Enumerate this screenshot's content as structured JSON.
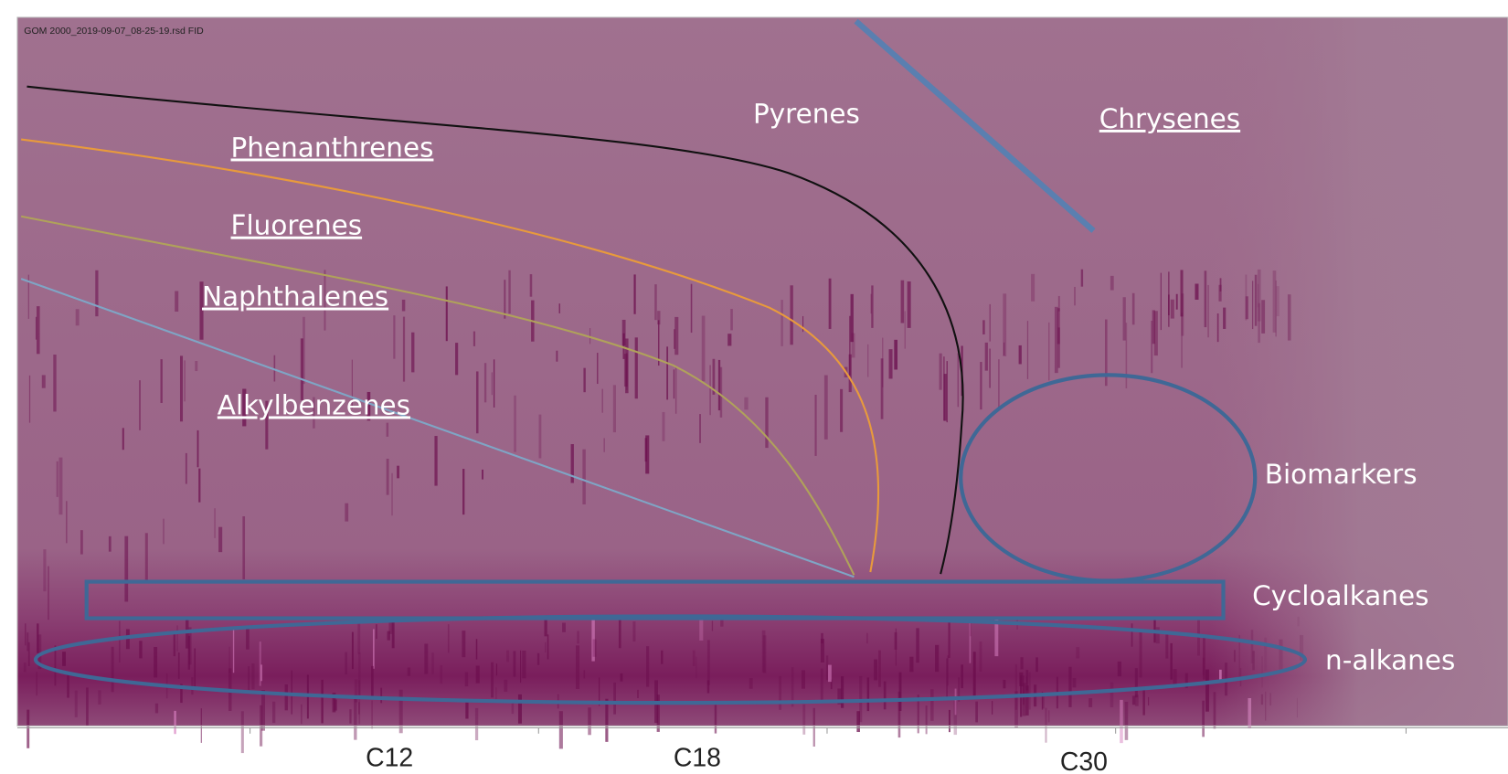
{
  "file_label": "GOM 2000_2019-09-07_08-25-19.rsd FID",
  "labels": {
    "pyrenes": "Pyrenes",
    "chrysenes": "Chrysenes",
    "phenanthrenes": "Phenanthrenes",
    "fluorenes": "Fluorenes",
    "naphthalenes": "Naphthalenes",
    "alkylbenzenes": "Alkylbenzenes",
    "biomarkers": "Biomarkers",
    "cycloalkanes": "Cycloalkanes",
    "n_alkanes": "n-alkanes"
  },
  "x_axis": {
    "labels": [
      "C12",
      "C18",
      "C30"
    ]
  }
}
